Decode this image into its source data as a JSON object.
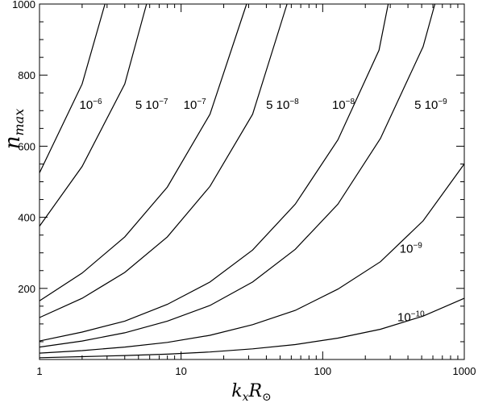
{
  "chart_data": {
    "type": "line",
    "xscale": "log",
    "xlim": [
      1,
      1000
    ],
    "ylim": [
      0,
      1000
    ],
    "xlabel": {
      "main": "k",
      "sub1": "x",
      "mid": "R",
      "sub2": "⊙"
    },
    "ylabel": {
      "main": "n",
      "sub": "max"
    },
    "xtick_labels": [
      {
        "value": 1,
        "text": "1"
      },
      {
        "value": 10,
        "text": "10"
      },
      {
        "value": 100,
        "text": "100"
      },
      {
        "value": 1000,
        "text": "1000"
      }
    ],
    "ytick_labels": [
      {
        "value": 200,
        "text": "200"
      },
      {
        "value": 400,
        "text": "400"
      },
      {
        "value": 600,
        "text": "600"
      },
      {
        "value": 800,
        "text": "800"
      },
      {
        "value": 1000,
        "text": "1000"
      }
    ],
    "series": [
      {
        "label_main": "10",
        "label_exp": "−6",
        "label_at": [
          2.3,
          705
        ],
        "points": [
          [
            1,
            525
          ],
          [
            2,
            775
          ],
          [
            2.9,
            1000
          ]
        ]
      },
      {
        "label_main": "5  10",
        "label_exp": "−7",
        "label_at": [
          6.2,
          705
        ],
        "points": [
          [
            1,
            375
          ],
          [
            2,
            543
          ],
          [
            4,
            775
          ],
          [
            5.7,
            1000
          ]
        ]
      },
      {
        "label_main": "10",
        "label_exp": "−7",
        "label_at": [
          12.5,
          705
        ],
        "points": [
          [
            1,
            165
          ],
          [
            2,
            243
          ],
          [
            4,
            345
          ],
          [
            8,
            485
          ],
          [
            16,
            690
          ],
          [
            29,
            1000
          ]
        ]
      },
      {
        "label_main": "5  10",
        "label_exp": "−8",
        "label_at": [
          52,
          705
        ],
        "points": [
          [
            1,
            118
          ],
          [
            2,
            172
          ],
          [
            4,
            245
          ],
          [
            8,
            345
          ],
          [
            16,
            487
          ],
          [
            32,
            690
          ],
          [
            56,
            1000
          ]
        ]
      },
      {
        "label_main": "10",
        "label_exp": "−8",
        "label_at": [
          140,
          705
        ],
        "points": [
          [
            1,
            52
          ],
          [
            2,
            77
          ],
          [
            4,
            108
          ],
          [
            8,
            155
          ],
          [
            16,
            218
          ],
          [
            32,
            308
          ],
          [
            64,
            437
          ],
          [
            128,
            618
          ],
          [
            250,
            870
          ],
          [
            290,
            1000
          ]
        ]
      },
      {
        "label_main": "5  10",
        "label_exp": "−9",
        "label_at": [
          580,
          705
        ],
        "points": [
          [
            1,
            35
          ],
          [
            2,
            52
          ],
          [
            4,
            75
          ],
          [
            8,
            108
          ],
          [
            16,
            152
          ],
          [
            32,
            218
          ],
          [
            64,
            310
          ],
          [
            128,
            437
          ],
          [
            256,
            622
          ],
          [
            512,
            880
          ],
          [
            620,
            1000
          ]
        ]
      },
      {
        "label_main": "10",
        "label_exp": "−9",
        "label_at": [
          420,
          300
        ],
        "points": [
          [
            1,
            18
          ],
          [
            2,
            25
          ],
          [
            4,
            35
          ],
          [
            8,
            48
          ],
          [
            16,
            68
          ],
          [
            32,
            98
          ],
          [
            64,
            138
          ],
          [
            128,
            198
          ],
          [
            256,
            275
          ],
          [
            512,
            390
          ],
          [
            1000,
            550
          ]
        ]
      },
      {
        "label_main": "10",
        "label_exp": "−10",
        "label_at": [
          420,
          108
        ],
        "points": [
          [
            1,
            5
          ],
          [
            2,
            8
          ],
          [
            4,
            11
          ],
          [
            8,
            15
          ],
          [
            16,
            21
          ],
          [
            32,
            30
          ],
          [
            64,
            42
          ],
          [
            128,
            60
          ],
          [
            256,
            85
          ],
          [
            512,
            122
          ],
          [
            1000,
            172
          ]
        ]
      }
    ]
  }
}
